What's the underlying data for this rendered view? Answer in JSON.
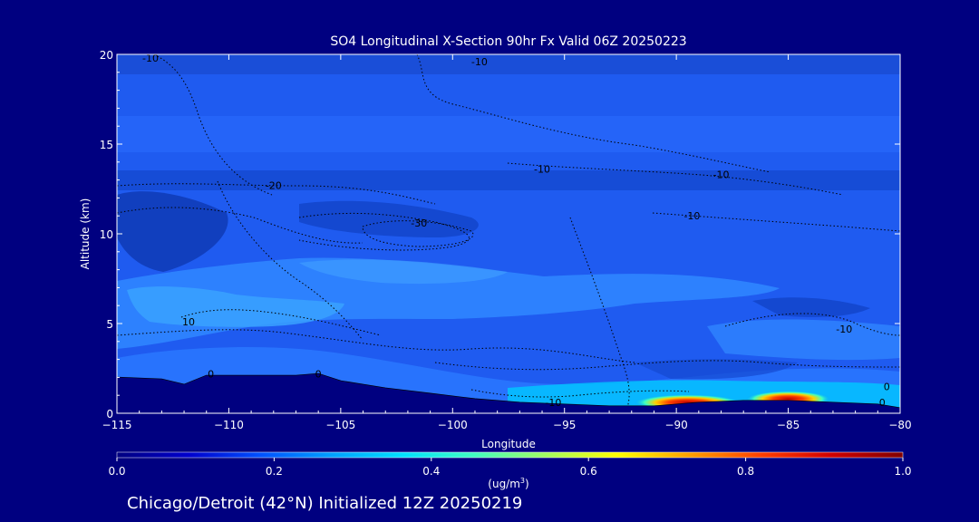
{
  "chart_data": {
    "type": "heatmap",
    "title": "SO4 Longitudinal X-Section 90hr  Fx Valid 06Z 20250223",
    "subtitle": "Chicago/Detroit (42°N) Initialized 12Z 20250219",
    "xlabel": "Longitude",
    "ylabel": "Altitude (km)",
    "xlim": [
      -115,
      -80
    ],
    "ylim": [
      0,
      20
    ],
    "x_ticks": [
      -115,
      -110,
      -105,
      -100,
      -95,
      -90,
      -85,
      -80
    ],
    "y_ticks": [
      0,
      5,
      10,
      15,
      20
    ],
    "colorbar": {
      "label": "(ug/m",
      "label_sup": "3",
      "label_end": ")",
      "range": [
        0.0,
        1.0
      ],
      "ticks": [
        "0.0",
        "0.2",
        "0.4",
        "0.6",
        "0.8",
        "1.0"
      ],
      "colors": [
        "#000080",
        "#0000cd",
        "#0050ff",
        "#00a0ff",
        "#00e0ff",
        "#40ffc0",
        "#a0ff60",
        "#ffff00",
        "#ffa000",
        "#ff4000",
        "#d00000",
        "#800000"
      ]
    },
    "contour_labels": [
      {
        "lon": -113.5,
        "alt": 19.8,
        "text": "-10"
      },
      {
        "lon": -98.8,
        "alt": 19.6,
        "text": "-10"
      },
      {
        "lon": -96.0,
        "alt": 13.6,
        "text": "-10"
      },
      {
        "lon": -88.0,
        "alt": 13.3,
        "text": "-10"
      },
      {
        "lon": -108.0,
        "alt": 12.7,
        "text": "-20"
      },
      {
        "lon": -101.5,
        "alt": 10.6,
        "text": "-30"
      },
      {
        "lon": -89.3,
        "alt": 11.0,
        "text": "-10"
      },
      {
        "lon": -111.8,
        "alt": 5.1,
        "text": "10"
      },
      {
        "lon": -82.5,
        "alt": 4.7,
        "text": "-10"
      },
      {
        "lon": -110.8,
        "alt": 2.2,
        "text": "0"
      },
      {
        "lon": -106.0,
        "alt": 2.2,
        "text": "0"
      },
      {
        "lon": -95.5,
        "alt": 0.6,
        "text": "-10"
      },
      {
        "lon": -80.8,
        "alt": 0.6,
        "text": "0"
      },
      {
        "lon": -80.6,
        "alt": 1.5,
        "text": "0"
      }
    ],
    "terrain": [
      [
        -115,
        2.0
      ],
      [
        -113,
        1.9
      ],
      [
        -112,
        1.6
      ],
      [
        -111,
        2.1
      ],
      [
        -109,
        2.1
      ],
      [
        -107,
        2.1
      ],
      [
        -106,
        2.2
      ],
      [
        -105,
        1.8
      ],
      [
        -103,
        1.4
      ],
      [
        -101,
        1.1
      ],
      [
        -99,
        0.8
      ],
      [
        -97,
        0.6
      ],
      [
        -95,
        0.5
      ],
      [
        -93,
        0.4
      ],
      [
        -91,
        0.4
      ],
      [
        -90,
        0.5
      ],
      [
        -89,
        0.6
      ],
      [
        -87,
        0.7
      ],
      [
        -85,
        0.7
      ],
      [
        -83,
        0.6
      ],
      [
        -81,
        0.5
      ],
      [
        -80,
        0.3
      ]
    ],
    "hotspots": [
      {
        "lon_start": -91.5,
        "lon_end": -87.5,
        "alt": 0.6,
        "peak_value": 0.85
      },
      {
        "lon_start": -86.5,
        "lon_end": -83.5,
        "alt": 0.8,
        "peak_value": 0.85
      }
    ]
  }
}
